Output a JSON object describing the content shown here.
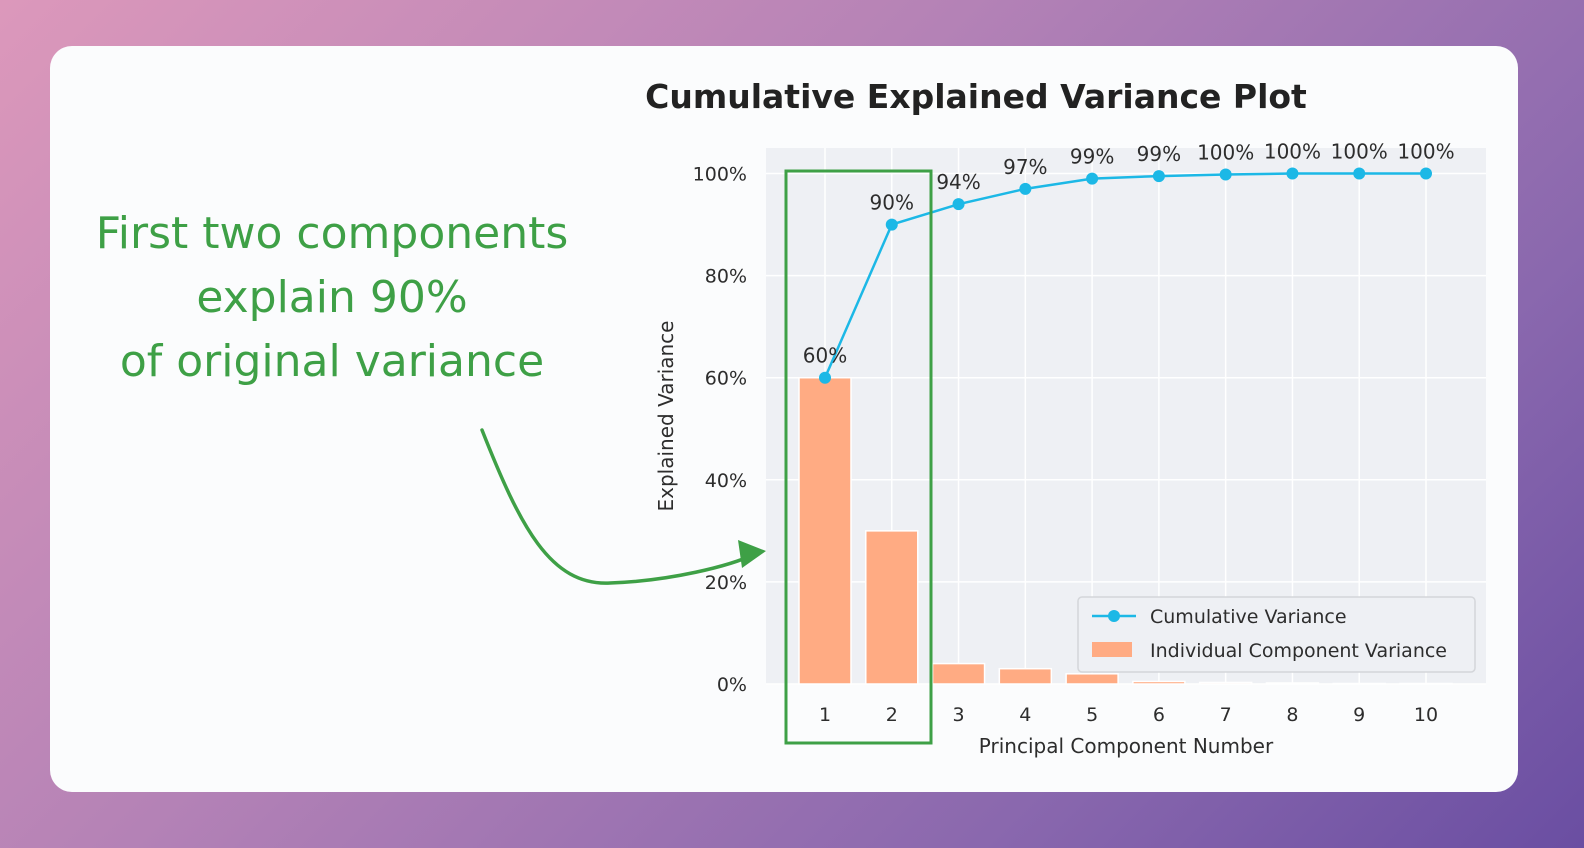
{
  "colors": {
    "cumulative": "#1cb8e6",
    "individual": "#ffab83",
    "highlight": "#3ea046",
    "plot_bg": "#eef0f4"
  },
  "annotation": {
    "lines": [
      "First two components",
      "explain 90%",
      "of original variance"
    ]
  },
  "chart_data": {
    "type": "bar",
    "title": "Cumulative Explained Variance Plot",
    "xlabel": "Principal Component Number",
    "ylabel": "Explained Variance",
    "categories": [
      "1",
      "2",
      "3",
      "4",
      "5",
      "6",
      "7",
      "8",
      "9",
      "10"
    ],
    "ylim": [
      0,
      1.05
    ],
    "yticks": [
      0,
      0.2,
      0.4,
      0.6,
      0.8,
      1.0
    ],
    "ytick_labels": [
      "0%",
      "20%",
      "40%",
      "60%",
      "80%",
      "100%"
    ],
    "grid": true,
    "legend_position": "bottom-right",
    "series": [
      {
        "name": "Cumulative Variance",
        "type": "line",
        "values": [
          0.6,
          0.9,
          0.94,
          0.97,
          0.99,
          0.995,
          0.998,
          1.0,
          1.0,
          1.0
        ],
        "labels": [
          "60%",
          "90%",
          "94%",
          "97%",
          "99%",
          "99%",
          "100%",
          "100%",
          "100%",
          "100%"
        ]
      },
      {
        "name": "Individual Component Variance",
        "type": "bar",
        "values": [
          0.6,
          0.3,
          0.04,
          0.03,
          0.02,
          0.005,
          0.003,
          0.002,
          0.001,
          0.001
        ]
      }
    ],
    "highlighted_categories": [
      "1",
      "2"
    ]
  }
}
